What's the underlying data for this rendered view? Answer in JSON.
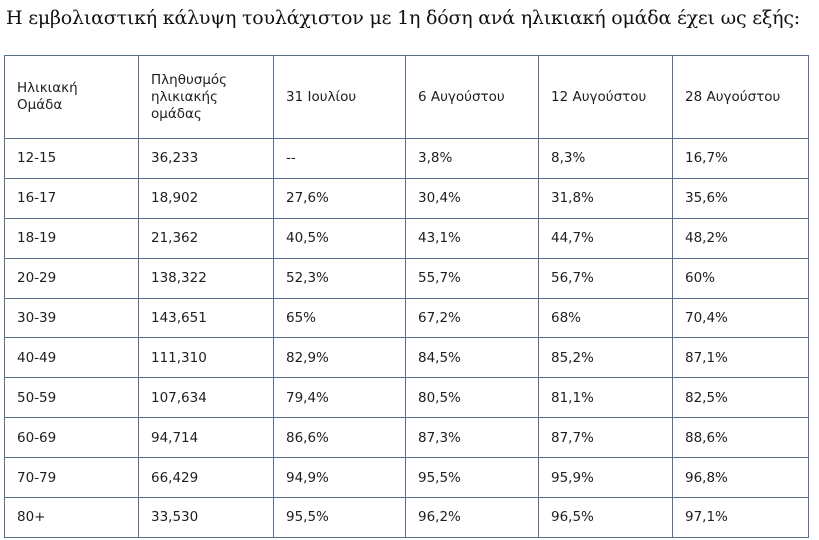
{
  "title": "Η εμβολιαστική κάλυψη τουλάχιστον με 1η δόση ανά ηλικιακή ομάδα έχει ως εξής:",
  "table": {
    "headers": [
      [
        "Ηλικιακή",
        "Ομάδα"
      ],
      [
        "Πληθυσμός",
        "ηλικιακής",
        "ομάδας"
      ],
      [
        "31 Ιουλίου"
      ],
      [
        "6 Αυγούστου"
      ],
      [
        "12 Αυγούστου"
      ],
      [
        "28 Αυγούστου"
      ]
    ],
    "rows": [
      [
        "12-15",
        "36,233",
        "--",
        "3,8%",
        "8,3%",
        "16,7%"
      ],
      [
        "16-17",
        "18,902",
        "27,6%",
        "30,4%",
        "31,8%",
        "35,6%"
      ],
      [
        "18-19",
        "21,362",
        "40,5%",
        "43,1%",
        "44,7%",
        "48,2%"
      ],
      [
        "20-29",
        "138,322",
        "52,3%",
        "55,7%",
        "56,7%",
        "60%"
      ],
      [
        "30-39",
        "143,651",
        "65%",
        "67,2%",
        "68%",
        "70,4%"
      ],
      [
        "40-49",
        "111,310",
        "82,9%",
        "84,5%",
        "85,2%",
        "87,1%"
      ],
      [
        "50-59",
        "107,634",
        "79,4%",
        "80,5%",
        "81,1%",
        "82,5%"
      ],
      [
        "60-69",
        "94,714",
        "86,6%",
        "87,3%",
        "87,7%",
        "88,6%"
      ],
      [
        "70-79",
        "66,429",
        "94,9%",
        "95,5%",
        "95,9%",
        "96,8%"
      ],
      [
        "80+",
        "33,530",
        "95,5%",
        "96,2%",
        "96,5%",
        "97,1%"
      ]
    ]
  },
  "colors": {
    "border": "#5a6f8c",
    "text": "#1e1e1e",
    "background": "#ffffff"
  }
}
